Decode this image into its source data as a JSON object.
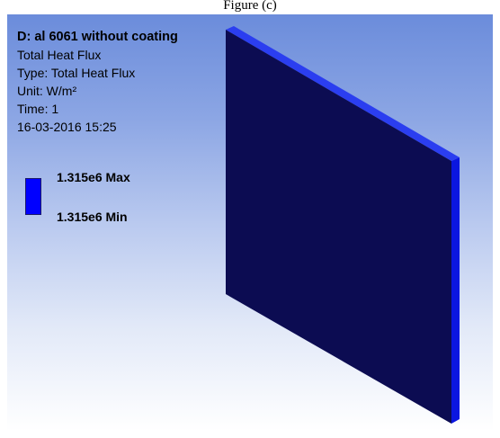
{
  "caption": "Figure (c)",
  "legend": {
    "title": "D: al 6061 without coating",
    "result_name": "Total Heat Flux",
    "type": "Type: Total Heat Flux",
    "unit": "Unit: W/m²",
    "time": "Time: 1",
    "timestamp": "16-03-2016 15:25",
    "max_label": "1.315e6 Max",
    "min_label": "1.315e6 Min"
  },
  "colors": {
    "plate_face": "#0c0c52",
    "plate_edge": "#0b16e0",
    "swatch": "#0000ff"
  }
}
